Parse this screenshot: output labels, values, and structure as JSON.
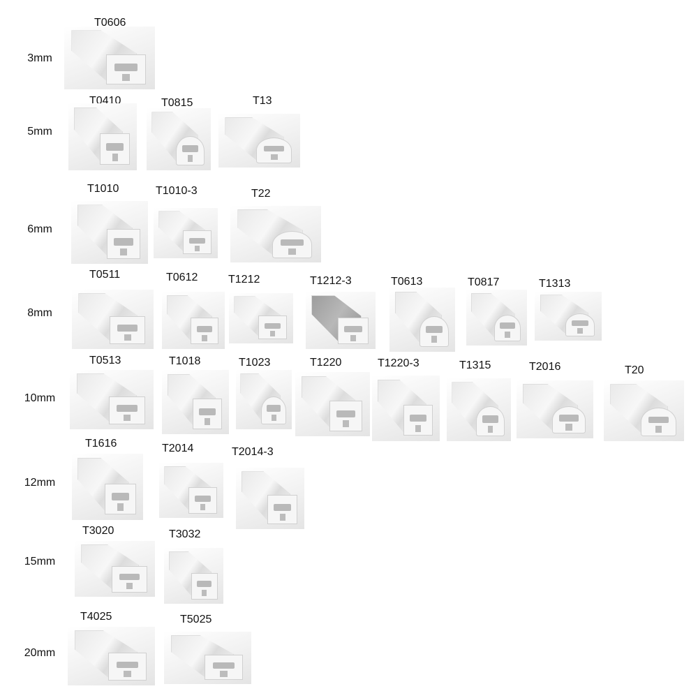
{
  "rows": [
    {
      "size": "3mm",
      "items": [
        "T0606"
      ]
    },
    {
      "size": "5mm",
      "items": [
        "T0410",
        "T0815",
        "T13"
      ]
    },
    {
      "size": "6mm",
      "items": [
        "T1010",
        "T1010-3",
        "T22"
      ]
    },
    {
      "size": "8mm",
      "items": [
        "T0511",
        "T0612",
        "T1212",
        "T1212-3",
        "T0613",
        "T0817",
        "T1313"
      ]
    },
    {
      "size": "10mm",
      "items": [
        "T0513",
        "T1018",
        "T1023",
        "T1220",
        "T1220-3",
        "T1315",
        "T2016",
        "T20"
      ]
    },
    {
      "size": "12mm",
      "items": [
        "T1616",
        "T2014",
        "T2014-3"
      ]
    },
    {
      "size": "15mm",
      "items": [
        "T3020",
        "T3032"
      ]
    },
    {
      "size": "20mm",
      "items": [
        "T4025",
        "T5025"
      ]
    }
  ]
}
